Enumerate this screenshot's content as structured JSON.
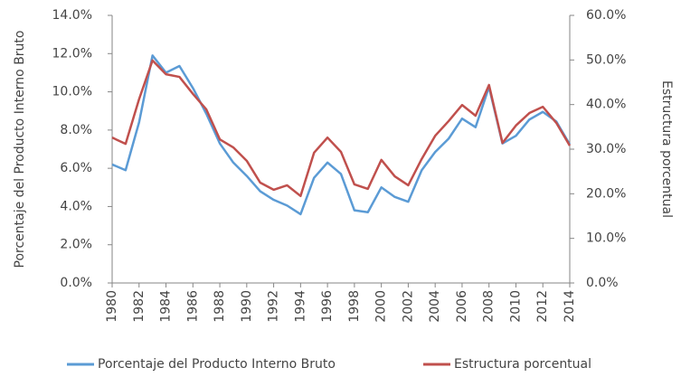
{
  "chart_data": {
    "type": "line",
    "x": [
      1980,
      1981,
      1982,
      1983,
      1984,
      1985,
      1986,
      1987,
      1988,
      1989,
      1990,
      1991,
      1992,
      1993,
      1994,
      1995,
      1996,
      1997,
      1998,
      1999,
      2000,
      2001,
      2002,
      2003,
      2004,
      2005,
      2006,
      2007,
      2008,
      2009,
      2010,
      2011,
      2012,
      2013,
      2014
    ],
    "xlim": [
      1980,
      2014
    ],
    "xticks": [
      1980,
      1982,
      1984,
      1986,
      1988,
      1990,
      1992,
      1994,
      1996,
      1998,
      2000,
      2002,
      2004,
      2006,
      2008,
      2010,
      2012,
      2014
    ],
    "ylabel": "Porcentaje del Producto Interno Bruto",
    "y2label": "Estructura porcentual",
    "ylim": [
      0,
      14
    ],
    "yticks": [
      {
        "value": 0,
        "label": "0.0%"
      },
      {
        "value": 2,
        "label": "2.0%"
      },
      {
        "value": 4,
        "label": "4.0%"
      },
      {
        "value": 6,
        "label": "6.0%"
      },
      {
        "value": 8,
        "label": "8.0%"
      },
      {
        "value": 10,
        "label": "10.0%"
      },
      {
        "value": 12,
        "label": "12.0%"
      },
      {
        "value": 14,
        "label": "14.0%"
      }
    ],
    "y2lim": [
      0,
      60
    ],
    "y2ticks": [
      {
        "value": 0,
        "label": "0.0%"
      },
      {
        "value": 10,
        "label": "10.0%"
      },
      {
        "value": 20,
        "label": "20.0%"
      },
      {
        "value": 30,
        "label": "30.0%"
      },
      {
        "value": 40,
        "label": "40.0%"
      },
      {
        "value": 50,
        "label": "50.0%"
      },
      {
        "value": 60,
        "label": "60.0%"
      }
    ],
    "grid": false,
    "legend": "bottom",
    "series": [
      {
        "name": "Porcentaje del Producto Interno Bruto",
        "color": "#5b9bd5",
        "values": [
          6.2,
          5.9,
          8.4,
          11.9,
          11.0,
          11.35,
          10.2,
          8.85,
          7.3,
          6.3,
          5.6,
          4.8,
          4.35,
          4.05,
          3.6,
          5.5,
          6.3,
          5.7,
          3.8,
          3.7,
          5.0,
          4.5,
          4.25,
          5.9,
          6.85,
          7.55,
          8.6,
          8.15,
          10.25,
          7.3,
          7.7,
          8.55,
          8.95,
          8.45,
          7.25
        ]
      },
      {
        "name": "Estructura porcentual",
        "color": "#c0504d",
        "axis": "y2",
        "values": [
          32.6,
          31.2,
          41.2,
          49.9,
          46.8,
          46.2,
          42.4,
          38.9,
          32.2,
          30.4,
          27.4,
          22.5,
          20.9,
          21.9,
          19.5,
          29.2,
          32.6,
          29.4,
          22.1,
          21.1,
          27.6,
          23.9,
          21.9,
          27.8,
          33.0,
          36.3,
          39.9,
          37.5,
          44.4,
          31.4,
          35.3,
          38.1,
          39.5,
          35.9,
          30.8
        ]
      }
    ]
  }
}
